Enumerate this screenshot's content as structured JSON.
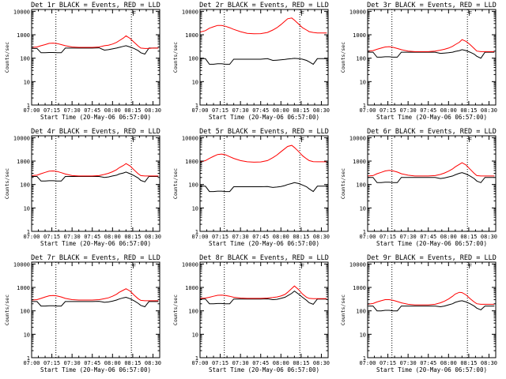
{
  "footer_label": "Start Time (20-May-06 06:57:00)",
  "y_label": "Counts/sec",
  "colors": {
    "events": "#000000",
    "lld": "#ff0000",
    "axes": "#000000"
  },
  "shared_axes": {
    "x_tick_labels": [
      "07:00",
      "07:15",
      "07:30",
      "07:45",
      "08:00",
      "08:15",
      "08:30"
    ],
    "xlim": [
      "07:00",
      "08:35"
    ],
    "y_tick_labels": [
      "1",
      "10",
      "100",
      "1000",
      "10000"
    ],
    "yscale": "log",
    "ylim": [
      1,
      12000
    ],
    "dotted_vlines": [
      "07:18",
      "08:14"
    ],
    "marker_label": "F",
    "marker_time": "08:14"
  },
  "chart_data": [
    {
      "type": "line",
      "title": "Det 1r BLACK = Events, RED = LLD",
      "x": [
        "07:00",
        "07:04",
        "07:07",
        "07:10",
        "07:13",
        "07:16",
        "07:19",
        "07:22",
        "07:25",
        "07:30",
        "07:35",
        "07:40",
        "07:45",
        "07:50",
        "07:54",
        "07:57",
        "08:00",
        "08:03",
        "08:05",
        "08:08",
        "08:10",
        "08:13",
        "08:16",
        "08:19",
        "08:21",
        "08:24",
        "08:27",
        "08:30",
        "08:32",
        "08:34"
      ],
      "series": [
        {
          "name": "Events",
          "values": [
            260,
            260,
            170,
            170,
            175,
            175,
            170,
            170,
            270,
            270,
            270,
            270,
            270,
            275,
            220,
            230,
            250,
            270,
            290,
            320,
            340,
            300,
            260,
            210,
            170,
            150,
            270,
            270,
            270,
            270
          ]
        },
        {
          "name": "LLD",
          "values": [
            290,
            300,
            340,
            380,
            430,
            440,
            420,
            380,
            340,
            300,
            290,
            290,
            290,
            300,
            340,
            360,
            400,
            470,
            560,
            720,
            900,
            700,
            480,
            330,
            270,
            260,
            260,
            270,
            270,
            270
          ]
        }
      ]
    },
    {
      "type": "line",
      "title": "Det 2r BLACK = Events, RED = LLD",
      "x": [
        "07:00",
        "07:04",
        "07:07",
        "07:10",
        "07:13",
        "07:16",
        "07:19",
        "07:22",
        "07:25",
        "07:30",
        "07:35",
        "07:40",
        "07:45",
        "07:50",
        "07:54",
        "07:57",
        "08:00",
        "08:03",
        "08:05",
        "08:08",
        "08:10",
        "08:13",
        "08:16",
        "08:19",
        "08:21",
        "08:24",
        "08:27",
        "08:30",
        "08:32",
        "08:34"
      ],
      "series": [
        {
          "name": "Events",
          "values": [
            95,
            95,
            55,
            55,
            58,
            58,
            55,
            55,
            90,
            90,
            90,
            90,
            90,
            95,
            80,
            82,
            85,
            88,
            92,
            95,
            98,
            95,
            90,
            80,
            70,
            55,
            95,
            95,
            95,
            95
          ]
        },
        {
          "name": "LLD",
          "values": [
            1300,
            1500,
            1900,
            2200,
            2500,
            2500,
            2300,
            2000,
            1700,
            1350,
            1150,
            1100,
            1120,
            1250,
            1600,
            2000,
            2700,
            3800,
            4800,
            5200,
            4200,
            2900,
            2000,
            1600,
            1350,
            1250,
            1200,
            1200,
            1200,
            1200
          ]
        }
      ]
    },
    {
      "type": "line",
      "title": "Det 3r BLACK = Events, RED = LLD",
      "x": [
        "07:00",
        "07:04",
        "07:07",
        "07:10",
        "07:13",
        "07:16",
        "07:19",
        "07:22",
        "07:25",
        "07:30",
        "07:35",
        "07:40",
        "07:45",
        "07:50",
        "07:54",
        "07:57",
        "08:00",
        "08:03",
        "08:05",
        "08:08",
        "08:10",
        "08:13",
        "08:16",
        "08:19",
        "08:21",
        "08:24",
        "08:27",
        "08:30",
        "08:32",
        "08:34"
      ],
      "series": [
        {
          "name": "Events",
          "values": [
            180,
            180,
            110,
            110,
            115,
            115,
            110,
            110,
            180,
            180,
            180,
            180,
            180,
            180,
            160,
            165,
            170,
            180,
            195,
            210,
            230,
            210,
            180,
            150,
            120,
            100,
            180,
            180,
            180,
            180
          ]
        },
        {
          "name": "LLD",
          "values": [
            200,
            210,
            240,
            270,
            300,
            310,
            290,
            260,
            230,
            200,
            190,
            190,
            190,
            200,
            220,
            240,
            270,
            320,
            380,
            480,
            620,
            520,
            380,
            260,
            200,
            190,
            190,
            190,
            190,
            190
          ]
        }
      ]
    },
    {
      "type": "line",
      "title": "Det 4r BLACK = Events, RED = LLD",
      "x": [
        "07:00",
        "07:04",
        "07:07",
        "07:10",
        "07:13",
        "07:16",
        "07:19",
        "07:22",
        "07:25",
        "07:30",
        "07:35",
        "07:40",
        "07:45",
        "07:50",
        "07:54",
        "07:57",
        "08:00",
        "08:03",
        "08:05",
        "08:08",
        "08:10",
        "08:13",
        "08:16",
        "08:19",
        "08:21",
        "08:24",
        "08:27",
        "08:30",
        "08:32",
        "08:34"
      ],
      "series": [
        {
          "name": "Events",
          "values": [
            220,
            220,
            140,
            140,
            145,
            145,
            140,
            140,
            220,
            220,
            220,
            220,
            220,
            220,
            200,
            210,
            230,
            250,
            280,
            310,
            340,
            290,
            240,
            190,
            150,
            130,
            220,
            220,
            220,
            220
          ]
        },
        {
          "name": "LLD",
          "values": [
            240,
            250,
            290,
            330,
            370,
            380,
            360,
            320,
            280,
            240,
            230,
            230,
            230,
            240,
            270,
            300,
            350,
            430,
            520,
            650,
            780,
            620,
            420,
            290,
            240,
            230,
            230,
            230,
            230,
            230
          ]
        }
      ]
    },
    {
      "type": "line",
      "title": "Det 5r BLACK = Events, RED = LLD",
      "x": [
        "07:00",
        "07:04",
        "07:07",
        "07:10",
        "07:13",
        "07:16",
        "07:19",
        "07:22",
        "07:25",
        "07:30",
        "07:35",
        "07:40",
        "07:45",
        "07:50",
        "07:54",
        "07:57",
        "08:00",
        "08:03",
        "08:05",
        "08:08",
        "08:10",
        "08:13",
        "08:16",
        "08:19",
        "08:21",
        "08:24",
        "08:27",
        "08:30",
        "08:32",
        "08:34"
      ],
      "series": [
        {
          "name": "Events",
          "values": [
            85,
            85,
            50,
            50,
            52,
            52,
            50,
            50,
            80,
            80,
            80,
            80,
            80,
            82,
            75,
            78,
            82,
            90,
            100,
            110,
            120,
            110,
            95,
            80,
            65,
            50,
            85,
            85,
            85,
            85
          ]
        },
        {
          "name": "LLD",
          "values": [
            900,
            1050,
            1300,
            1600,
            1900,
            2000,
            1850,
            1550,
            1300,
            1050,
            930,
            900,
            920,
            1050,
            1400,
            1800,
            2500,
            3400,
            4200,
            4700,
            3800,
            2600,
            1700,
            1250,
            1050,
            950,
            930,
            930,
            930,
            930
          ]
        }
      ]
    },
    {
      "type": "line",
      "title": "Det 6r BLACK = Events, RED = LLD",
      "x": [
        "07:00",
        "07:04",
        "07:07",
        "07:10",
        "07:13",
        "07:16",
        "07:19",
        "07:22",
        "07:25",
        "07:30",
        "07:35",
        "07:40",
        "07:45",
        "07:50",
        "07:54",
        "07:57",
        "08:00",
        "08:03",
        "08:05",
        "08:08",
        "08:10",
        "08:13",
        "08:16",
        "08:19",
        "08:21",
        "08:24",
        "08:27",
        "08:30",
        "08:32",
        "08:34"
      ],
      "series": [
        {
          "name": "Events",
          "values": [
            200,
            200,
            120,
            120,
            125,
            125,
            120,
            120,
            200,
            200,
            200,
            200,
            200,
            200,
            180,
            190,
            210,
            230,
            260,
            300,
            320,
            280,
            230,
            180,
            140,
            120,
            200,
            200,
            200,
            200
          ]
        },
        {
          "name": "LLD",
          "values": [
            230,
            240,
            290,
            330,
            380,
            400,
            380,
            340,
            290,
            250,
            230,
            230,
            230,
            240,
            270,
            310,
            370,
            460,
            570,
            720,
            850,
            680,
            450,
            300,
            240,
            230,
            230,
            230,
            230,
            230
          ]
        }
      ]
    },
    {
      "type": "line",
      "title": "Det 7r BLACK = Events, RED = LLD",
      "x": [
        "07:00",
        "07:04",
        "07:07",
        "07:10",
        "07:13",
        "07:16",
        "07:19",
        "07:22",
        "07:25",
        "07:30",
        "07:35",
        "07:40",
        "07:45",
        "07:50",
        "07:54",
        "07:57",
        "08:00",
        "08:03",
        "08:05",
        "08:08",
        "08:10",
        "08:13",
        "08:16",
        "08:19",
        "08:21",
        "08:24",
        "08:27",
        "08:30",
        "08:32",
        "08:34"
      ],
      "series": [
        {
          "name": "Events",
          "values": [
            250,
            250,
            160,
            160,
            165,
            165,
            160,
            160,
            250,
            250,
            250,
            250,
            250,
            255,
            230,
            240,
            260,
            290,
            320,
            360,
            380,
            330,
            270,
            210,
            170,
            150,
            250,
            250,
            250,
            250
          ]
        },
        {
          "name": "LLD",
          "values": [
            290,
            300,
            340,
            390,
            440,
            450,
            430,
            390,
            340,
            300,
            290,
            290,
            290,
            300,
            330,
            360,
            420,
            510,
            620,
            760,
            880,
            700,
            470,
            330,
            280,
            270,
            270,
            270,
            270,
            270
          ]
        }
      ]
    },
    {
      "type": "line",
      "title": "Det 8r BLACK = Events, RED = LLD",
      "x": [
        "07:00",
        "07:04",
        "07:07",
        "07:10",
        "07:13",
        "07:16",
        "07:19",
        "07:22",
        "07:25",
        "07:30",
        "07:35",
        "07:40",
        "07:45",
        "07:50",
        "07:54",
        "07:57",
        "08:00",
        "08:03",
        "08:05",
        "08:08",
        "08:10",
        "08:13",
        "08:16",
        "08:19",
        "08:21",
        "08:24",
        "08:27",
        "08:30",
        "08:32",
        "08:34"
      ],
      "series": [
        {
          "name": "Events",
          "values": [
            320,
            320,
            200,
            200,
            205,
            205,
            200,
            200,
            320,
            320,
            320,
            320,
            320,
            325,
            300,
            310,
            340,
            380,
            440,
            560,
            700,
            520,
            380,
            280,
            220,
            190,
            320,
            320,
            320,
            320
          ]
        },
        {
          "name": "LLD",
          "values": [
            340,
            350,
            380,
            420,
            460,
            470,
            450,
            420,
            380,
            350,
            340,
            340,
            340,
            350,
            370,
            390,
            430,
            500,
            620,
            900,
            1150,
            820,
            520,
            380,
            340,
            330,
            330,
            330,
            330,
            330
          ]
        }
      ]
    },
    {
      "type": "line",
      "title": "Det 9r BLACK = Events, RED = LLD",
      "x": [
        "07:00",
        "07:04",
        "07:07",
        "07:10",
        "07:13",
        "07:16",
        "07:19",
        "07:22",
        "07:25",
        "07:30",
        "07:35",
        "07:40",
        "07:45",
        "07:50",
        "07:54",
        "07:57",
        "08:00",
        "08:03",
        "08:05",
        "08:08",
        "08:10",
        "08:13",
        "08:16",
        "08:19",
        "08:21",
        "08:24",
        "08:27",
        "08:30",
        "08:32",
        "08:34"
      ],
      "series": [
        {
          "name": "Events",
          "values": [
            160,
            160,
            100,
            100,
            105,
            105,
            100,
            100,
            160,
            160,
            160,
            160,
            160,
            160,
            150,
            160,
            180,
            200,
            230,
            260,
            270,
            240,
            200,
            160,
            130,
            110,
            160,
            160,
            160,
            160
          ]
        },
        {
          "name": "LLD",
          "values": [
            190,
            205,
            240,
            270,
            300,
            300,
            280,
            250,
            220,
            190,
            180,
            180,
            180,
            190,
            220,
            260,
            320,
            420,
            520,
            620,
            600,
            480,
            330,
            240,
            200,
            190,
            190,
            190,
            190,
            190
          ]
        }
      ]
    }
  ]
}
